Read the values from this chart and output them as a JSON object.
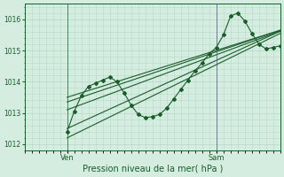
{
  "xlabel": "Pression niveau de la mer( hPa )",
  "bg_color": "#d4ede0",
  "grid_color": "#b8d8c8",
  "line_color": "#1a5c2a",
  "ylim": [
    1011.8,
    1016.5
  ],
  "yticks": [
    1012,
    1013,
    1014,
    1015,
    1016
  ],
  "xlim": [
    0,
    72
  ],
  "ven_x": 12,
  "sam_x": 54,
  "smooth_lines": [
    {
      "x0": 12,
      "y0": 1012.2,
      "x1": 72,
      "y1": 1015.55
    },
    {
      "x0": 12,
      "y0": 1012.5,
      "x1": 72,
      "y1": 1015.62
    },
    {
      "x0": 12,
      "y0": 1013.1,
      "x1": 72,
      "y1": 1015.62
    },
    {
      "x0": 12,
      "y0": 1013.35,
      "x1": 72,
      "y1": 1015.65
    },
    {
      "x0": 12,
      "y0": 1013.5,
      "x1": 72,
      "y1": 1015.65
    }
  ],
  "marker_series_x": [
    12,
    14,
    16,
    18,
    20,
    22,
    24,
    26,
    28,
    30,
    32,
    34,
    36,
    38,
    40,
    42,
    44,
    46,
    48,
    50,
    52,
    54,
    56,
    58,
    60,
    62,
    64,
    66,
    68,
    70,
    72
  ],
  "marker_series_y": [
    1012.4,
    1013.05,
    1013.55,
    1013.85,
    1013.95,
    1014.05,
    1014.15,
    1014.0,
    1013.65,
    1013.25,
    1012.95,
    1012.85,
    1012.88,
    1012.95,
    1013.15,
    1013.45,
    1013.75,
    1014.05,
    1014.35,
    1014.6,
    1014.9,
    1015.1,
    1015.5,
    1016.1,
    1016.2,
    1015.95,
    1015.55,
    1015.2,
    1015.05,
    1015.1,
    1015.15
  ],
  "xtick_labels": [
    "Ven",
    "Sam"
  ],
  "xtick_positions": [
    12,
    54
  ]
}
